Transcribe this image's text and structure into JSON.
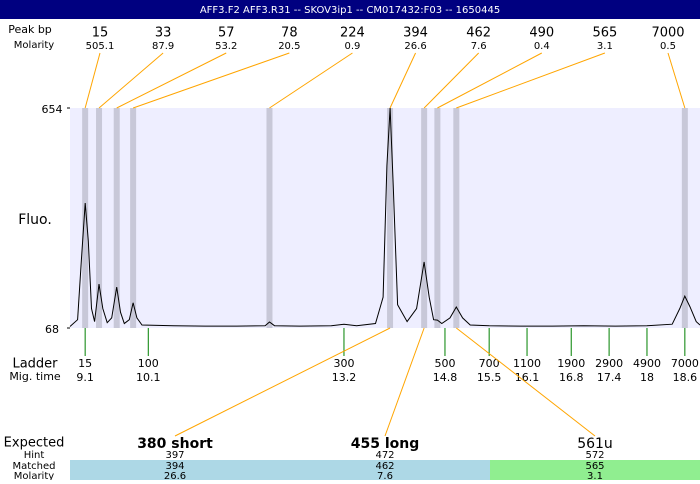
{
  "chart_data": {
    "type": "line",
    "title": "AFF3.F2  AFF3.R31 -- SKOV3ip1 -- CM017432:F03 -- 1650445",
    "ylabel": "Fluo.",
    "ylim": [
      68,
      654
    ],
    "yticks": [
      68,
      654
    ],
    "xlim": [
      8.86,
      18.84
    ],
    "color": "#000000",
    "plot_background": "#eeeeff",
    "x": [
      8.86,
      8.98,
      9.04,
      9.1,
      9.15,
      9.2,
      9.25,
      9.32,
      9.38,
      9.45,
      9.52,
      9.6,
      9.66,
      9.72,
      9.8,
      9.86,
      9.92,
      10.0,
      10.5,
      11.0,
      11.5,
      11.95,
      12.02,
      12.1,
      12.5,
      13.0,
      13.2,
      13.4,
      13.7,
      13.82,
      13.88,
      13.93,
      13.98,
      14.05,
      14.2,
      14.35,
      14.47,
      14.55,
      14.62,
      14.68,
      14.75,
      14.88,
      14.98,
      15.08,
      15.2,
      15.5,
      16.0,
      16.5,
      17.0,
      17.5,
      18.0,
      18.4,
      18.52,
      18.6,
      18.68,
      18.78,
      18.84
    ],
    "values": [
      72,
      90,
      250,
      401,
      300,
      120,
      85,
      185,
      120,
      82,
      95,
      177,
      110,
      80,
      90,
      135,
      95,
      76,
      74,
      73,
      73,
      74,
      84,
      74,
      73,
      74,
      78,
      74,
      80,
      150,
      500,
      654,
      450,
      130,
      85,
      120,
      244,
      150,
      90,
      89,
      80,
      95,
      124,
      95,
      76,
      74,
      73,
      73,
      74,
      73,
      74,
      78,
      120,
      153,
      125,
      85,
      76
    ],
    "peaks": {
      "size_label": "Peak bp",
      "molarity_label": "Molarity",
      "sizes": [
        15,
        33,
        57,
        78,
        224,
        394,
        462,
        490,
        565,
        7000
      ],
      "molarity": [
        505.1,
        87.9,
        53.2,
        20.5,
        0.9,
        26.6,
        7.6,
        0.4,
        3.1,
        0.5
      ],
      "mig_time": [
        9.1,
        9.32,
        9.6,
        9.86,
        12.02,
        13.93,
        14.47,
        14.68,
        14.98,
        18.6
      ],
      "band_color": "#c8c8d8",
      "line_color": "#ffa500"
    },
    "ladder": {
      "label": "Ladder",
      "time_label": "Mig. time",
      "sizes": [
        15,
        100,
        300,
        500,
        700,
        1100,
        1900,
        2900,
        4900,
        7000
      ],
      "mig_time": [
        9.1,
        10.1,
        13.2,
        14.8,
        15.5,
        16.1,
        16.8,
        17.4,
        18,
        18.6
      ],
      "color": "#008000"
    },
    "expected": {
      "label": "Expected",
      "hint_label": "Hint",
      "matched_label": "Matched",
      "molarity_label": "Molarity",
      "names": [
        "380 short",
        "455 long",
        "561u"
      ],
      "hint": [
        397,
        472,
        572
      ],
      "matched": [
        394,
        462,
        565
      ],
      "molarity": [
        26.6,
        7.6,
        3.1
      ],
      "colors": [
        "#add8e6",
        "#add8e6",
        "#90ee90"
      ]
    }
  }
}
